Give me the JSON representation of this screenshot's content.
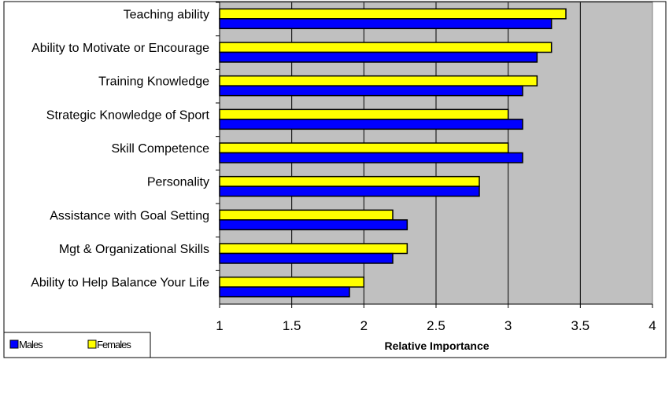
{
  "chart_data": {
    "type": "bar",
    "orientation": "horizontal",
    "title": "",
    "xlabel": "Relative Importance",
    "ylabel": "",
    "xlim": [
      1,
      4
    ],
    "xticks": [
      "1",
      "1.5",
      "2",
      "2.5",
      "3",
      "3.5",
      "4"
    ],
    "grid": true,
    "legend_position": "bottom-left",
    "categories": [
      "Teaching ability",
      "Ability to Motivate or Encourage",
      "Training Knowledge",
      "Strategic Knowledge of Sport",
      "Skill Competence",
      "Personality",
      "Assistance with Goal Setting",
      "Mgt & Organizational Skills",
      "Ability to Help Balance Your Life"
    ],
    "series": [
      {
        "name": "Females",
        "color": "#ffff00",
        "values": [
          3.4,
          3.3,
          3.2,
          3.0,
          3.0,
          2.8,
          2.2,
          2.3,
          2.0
        ]
      },
      {
        "name": "Males",
        "color": "#0000ff",
        "values": [
          3.3,
          3.2,
          3.1,
          3.1,
          3.1,
          2.8,
          2.3,
          2.2,
          1.9
        ]
      }
    ],
    "legend": [
      "Males",
      "Females"
    ]
  }
}
